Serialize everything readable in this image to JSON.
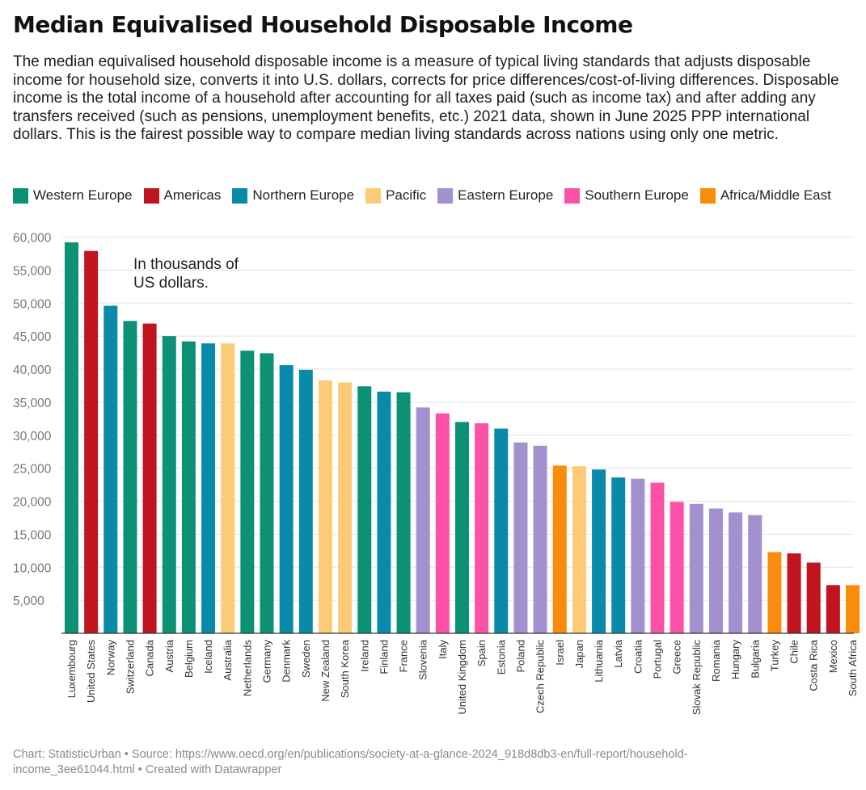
{
  "chart_data": {
    "type": "bar",
    "title": "Median Equivalised Household Disposable Income",
    "subtitle": "The median equivalised household disposable income is a measure of typical living standards that adjusts disposable income for household size, converts it into U.S. dollars, corrects for price differences/cost-of-living differences. Disposable income is the total income of a household after accounting for all taxes paid (such as income tax) and after adding any transfers received (such as pensions, unemployment benefits, etc.) 2021 data, shown in June 2025 PPP international dollars. This is the fairest possible way to compare median living standards across nations using only one metric.",
    "annotation": "In thousands of\nUS dollars.",
    "xlabel": "",
    "ylabel": "",
    "ylim": [
      0,
      60000
    ],
    "yticks": [
      5000,
      10000,
      15000,
      20000,
      25000,
      30000,
      35000,
      40000,
      45000,
      50000,
      55000,
      60000
    ],
    "ytick_labels": [
      "5,000",
      "10,000",
      "15,000",
      "20,000",
      "25,000",
      "30,000",
      "35,000",
      "40,000",
      "45,000",
      "50,000",
      "55,000",
      "60,000"
    ],
    "grid": true,
    "legend": [
      {
        "name": "Western Europe",
        "color": "#0c9174"
      },
      {
        "name": "Americas",
        "color": "#c0141f"
      },
      {
        "name": "Northern Europe",
        "color": "#0a8aa9"
      },
      {
        "name": "Pacific",
        "color": "#fdcb78"
      },
      {
        "name": "Eastern Europe",
        "color": "#a290cf"
      },
      {
        "name": "Southern Europe",
        "color": "#fb52a8"
      },
      {
        "name": "Africa/Middle East",
        "color": "#fb8b0a"
      }
    ],
    "categories": [
      "Luxembourg",
      "United States",
      "Norway",
      "Switzerland",
      "Canada",
      "Austria",
      "Belgium",
      "Iceland",
      "Australia",
      "Netherlands",
      "Germany",
      "Denmark",
      "Sweden",
      "New Zealand",
      "South Korea",
      "Ireland",
      "Finland",
      "France",
      "Slovenia",
      "Italy",
      "United Kingdom",
      "Spain",
      "Estonia",
      "Poland",
      "Czech Republic",
      "Israel",
      "Japan",
      "Lithuania",
      "Latvia",
      "Croatia",
      "Portugal",
      "Greece",
      "Slovak Republic",
      "Romania",
      "Hungary",
      "Bulgaria",
      "Turkey",
      "Chile",
      "Costa Rica",
      "Mexico",
      "South Africa"
    ],
    "values": [
      59200,
      57900,
      49600,
      47300,
      46900,
      45000,
      44200,
      43900,
      43900,
      42800,
      42400,
      40600,
      39900,
      38300,
      38000,
      37400,
      36600,
      36500,
      34200,
      33300,
      32000,
      31800,
      31000,
      28900,
      28400,
      25400,
      25300,
      24800,
      23600,
      23400,
      22800,
      19900,
      19600,
      18900,
      18300,
      17900,
      12300,
      12100,
      10700,
      7300,
      7300
    ],
    "regions": [
      "Western Europe",
      "Americas",
      "Northern Europe",
      "Western Europe",
      "Americas",
      "Western Europe",
      "Western Europe",
      "Northern Europe",
      "Pacific",
      "Western Europe",
      "Western Europe",
      "Northern Europe",
      "Northern Europe",
      "Pacific",
      "Pacific",
      "Western Europe",
      "Northern Europe",
      "Western Europe",
      "Eastern Europe",
      "Southern Europe",
      "Western Europe",
      "Southern Europe",
      "Northern Europe",
      "Eastern Europe",
      "Eastern Europe",
      "Africa/Middle East",
      "Pacific",
      "Northern Europe",
      "Northern Europe",
      "Eastern Europe",
      "Southern Europe",
      "Southern Europe",
      "Eastern Europe",
      "Eastern Europe",
      "Eastern Europe",
      "Eastern Europe",
      "Africa/Middle East",
      "Americas",
      "Americas",
      "Americas",
      "Africa/Middle East"
    ]
  },
  "footer": {
    "text": "Chart: StatisticUrban • Source: https://www.oecd.org/en/publications/society-at-a-glance-2024_918d8db3-en/full-report/household-income_3ee61044.html • Created with Datawrapper"
  }
}
